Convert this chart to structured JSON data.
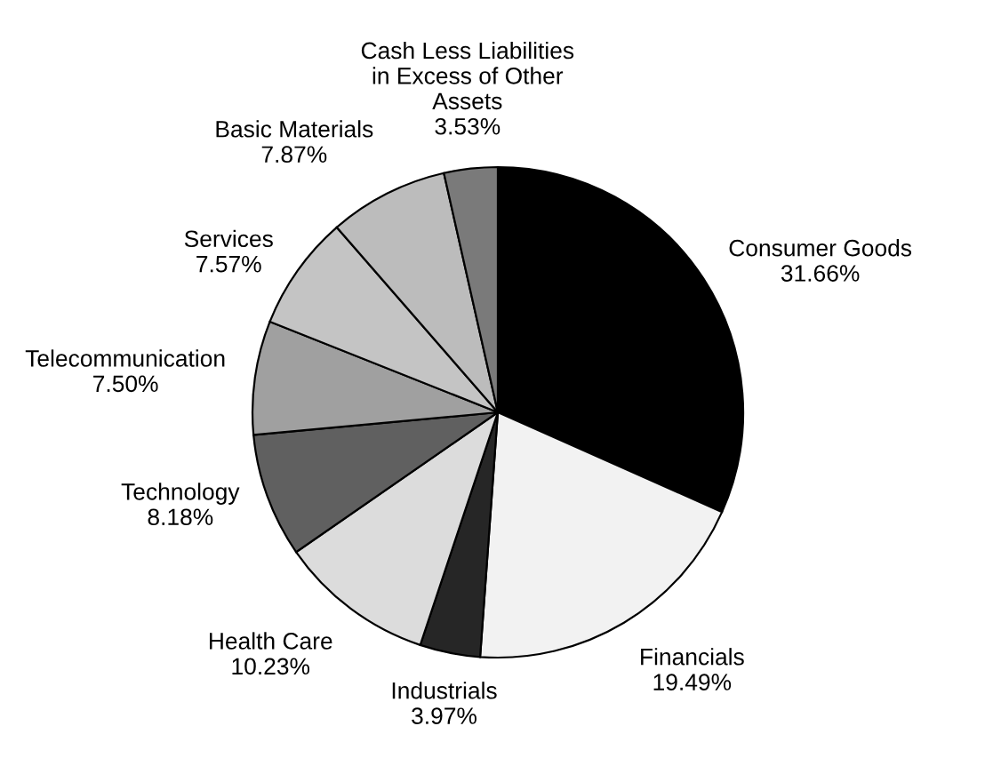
{
  "chart_data": {
    "type": "pie",
    "categories": [
      "Consumer Goods",
      "Financials",
      "Industrials",
      "Health Care",
      "Technology",
      "Telecommunication",
      "Services",
      "Basic Materials",
      "Cash Less Liabilities\nin Excess of Other\nAssets"
    ],
    "values": [
      31.66,
      19.49,
      3.97,
      10.23,
      8.18,
      7.5,
      7.57,
      7.87,
      3.53
    ],
    "value_labels": [
      "31.66%",
      "19.49%",
      "3.97%",
      "10.23%",
      "8.18%",
      "7.50%",
      "7.57%",
      "7.87%",
      "3.53%"
    ],
    "colors": [
      "#000000",
      "#f2f2f2",
      "#262626",
      "#dcdcdc",
      "#606060",
      "#a0a0a0",
      "#c4c4c4",
      "#bcbcbc",
      "#7a7a7a"
    ],
    "legend": false
  }
}
